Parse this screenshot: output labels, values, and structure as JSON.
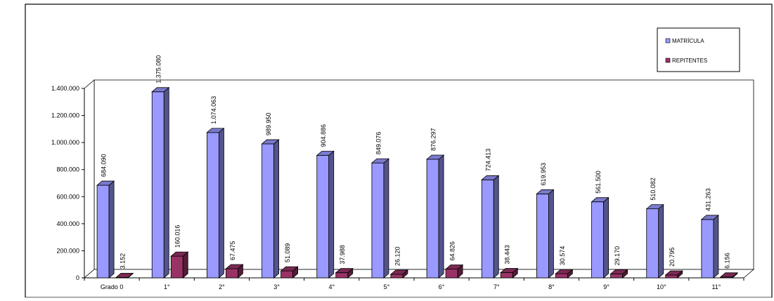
{
  "chart_data": {
    "type": "bar",
    "title": "",
    "xlabel": "",
    "ylabel": "",
    "ylim": [
      0,
      1400000
    ],
    "yticks": [
      0,
      200000,
      400000,
      600000,
      800000,
      1000000,
      1200000,
      1400000
    ],
    "ytick_labels": [
      "0",
      "200.000",
      "400.000",
      "600.000",
      "800.000",
      "1.000.000",
      "1.200.000",
      "1.400.000"
    ],
    "grid": false,
    "three_d": true,
    "legend_position": "top-right",
    "categories": [
      "Grado 0",
      "1°",
      "2°",
      "3°",
      "4°",
      "5°",
      "6°",
      "7°",
      "8°",
      "9°",
      "10°",
      "11°"
    ],
    "series": [
      {
        "name": "MATRÍCULA",
        "color": "#9999ff",
        "values": [
          684090,
          1375080,
          1074063,
          989950,
          904886,
          849076,
          876297,
          724413,
          619953,
          561500,
          510082,
          431263
        ],
        "labels": [
          "684.090",
          "1.375.080",
          "1.074.063",
          "989.950",
          "904.886",
          "849.076",
          "876.297",
          "724.413",
          "619.953",
          "561.500",
          "510.082",
          "431.263"
        ]
      },
      {
        "name": "REPITENTES",
        "color": "#993366",
        "values": [
          3152,
          160016,
          67475,
          51089,
          37988,
          26120,
          64826,
          38443,
          30574,
          29170,
          20795,
          6156
        ],
        "labels": [
          "3.152",
          "160.016",
          "67.475",
          "51.089",
          "37.988",
          "26.120",
          "64.826",
          "38.443",
          "30.574",
          "29.170",
          "20.795",
          "6.156"
        ]
      }
    ]
  }
}
